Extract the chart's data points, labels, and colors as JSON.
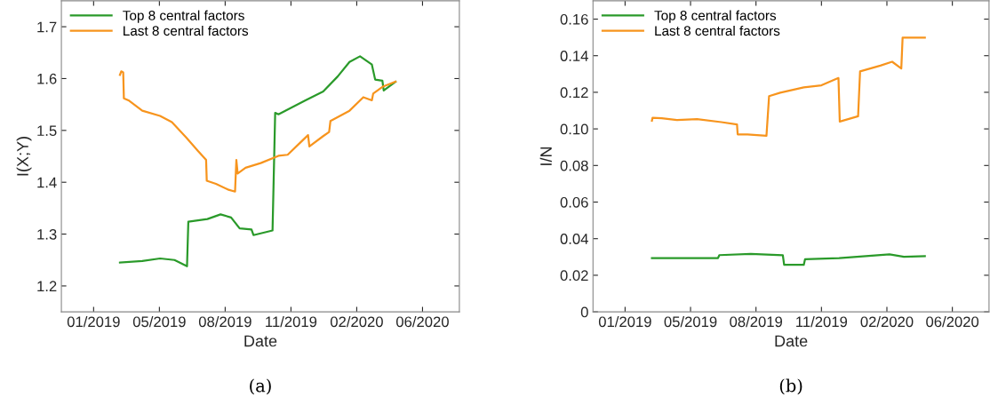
{
  "chart_data": [
    {
      "type": "line",
      "xlabel": "Date",
      "ylabel": "I(X;Y)",
      "annotations": [
        "(a)"
      ],
      "legend": "top left",
      "grid": false,
      "xlim": [
        "2018-12-04",
        "2020-07-31"
      ],
      "xticks": [
        {
          "value": "2019-01-22",
          "label": "01/2019"
        },
        {
          "value": "2019-05-02",
          "label": "05/2019"
        },
        {
          "value": "2019-08-10",
          "label": "08/2019"
        },
        {
          "value": "2019-11-18",
          "label": "11/2019"
        },
        {
          "value": "2020-02-26",
          "label": "02/2020"
        },
        {
          "value": "2020-06-05",
          "label": "06/2020"
        }
      ],
      "ylim": [
        1.15,
        1.75
      ],
      "yticks": [
        1.2,
        1.3,
        1.4,
        1.5,
        1.6,
        1.7
      ],
      "series": [
        {
          "name": "Top 8 central factors",
          "color": "#2a9a2a",
          "x": [
            "2019-03-03",
            "2019-04-06",
            "2019-05-03",
            "2019-05-25",
            "2019-06-13",
            "2019-06-15",
            "2019-07-14",
            "2019-08-03",
            "2019-08-19",
            "2019-09-01",
            "2019-09-19",
            "2019-09-22",
            "2019-10-21",
            "2019-10-25",
            "2019-10-30",
            "2019-12-10",
            "2020-01-06",
            "2020-01-28",
            "2020-02-15",
            "2020-03-02",
            "2020-03-20",
            "2020-03-25",
            "2020-04-05",
            "2020-04-07",
            "2020-04-25"
          ],
          "values": [
            1.245,
            1.248,
            1.253,
            1.25,
            1.238,
            1.324,
            1.329,
            1.338,
            1.332,
            1.311,
            1.309,
            1.298,
            1.307,
            1.534,
            1.531,
            1.558,
            1.575,
            1.604,
            1.632,
            1.643,
            1.627,
            1.598,
            1.596,
            1.577,
            1.594
          ]
        },
        {
          "name": "Last 8 central factors",
          "color": "#f7941d",
          "x": [
            "2019-03-03",
            "2019-03-05",
            "2019-03-08",
            "2019-03-09",
            "2019-03-16",
            "2019-04-06",
            "2019-05-03",
            "2019-05-21",
            "2019-06-12",
            "2019-06-30",
            "2019-07-12",
            "2019-07-13",
            "2019-07-27",
            "2019-08-14",
            "2019-08-25",
            "2019-08-27",
            "2019-08-29",
            "2019-09-10",
            "2019-10-03",
            "2019-10-30",
            "2019-11-13",
            "2019-12-01",
            "2019-12-14",
            "2019-12-16",
            "2020-01-06",
            "2020-01-15",
            "2020-01-17",
            "2020-02-15",
            "2020-03-07",
            "2020-03-20",
            "2020-03-22",
            "2020-04-05",
            "2020-04-25"
          ],
          "values": [
            1.607,
            1.614,
            1.612,
            1.562,
            1.558,
            1.538,
            1.528,
            1.516,
            1.486,
            1.46,
            1.443,
            1.403,
            1.397,
            1.386,
            1.382,
            1.443,
            1.417,
            1.428,
            1.437,
            1.451,
            1.453,
            1.475,
            1.491,
            1.469,
            1.489,
            1.497,
            1.518,
            1.538,
            1.564,
            1.558,
            1.571,
            1.584,
            1.594
          ]
        }
      ]
    },
    {
      "type": "line",
      "xlabel": "Date",
      "ylabel": "I/N",
      "annotations": [
        "(b)"
      ],
      "legend": "top left",
      "grid": false,
      "xlim": [
        "2018-12-04",
        "2020-07-31"
      ],
      "xticks": [
        {
          "value": "2019-01-22",
          "label": "01/2019"
        },
        {
          "value": "2019-05-02",
          "label": "05/2019"
        },
        {
          "value": "2019-08-10",
          "label": "08/2019"
        },
        {
          "value": "2019-11-18",
          "label": "11/2019"
        },
        {
          "value": "2020-02-26",
          "label": "02/2020"
        },
        {
          "value": "2020-06-05",
          "label": "06/2020"
        }
      ],
      "ylim": [
        0,
        0.17
      ],
      "yticks": [
        0,
        {
          "value": 0.02,
          "label": "0.02"
        },
        {
          "value": 0.04,
          "label": "0.04"
        },
        {
          "value": 0.06,
          "label": "0.06"
        },
        {
          "value": 0.08,
          "label": "0.08"
        },
        {
          "value": 0.1,
          "label": "0.10"
        },
        {
          "value": 0.12,
          "label": "0.12"
        },
        {
          "value": 0.14,
          "label": "0.14"
        },
        {
          "value": 0.16,
          "label": "0.16"
        }
      ],
      "series": [
        {
          "name": "Top 8 central factors",
          "color": "#2a9a2a",
          "x": [
            "2019-03-04",
            "2019-06-13",
            "2019-06-15",
            "2019-08-02",
            "2019-09-20",
            "2019-09-22",
            "2019-10-22",
            "2019-10-24",
            "2019-12-15",
            "2020-03-01",
            "2020-03-23",
            "2020-04-24"
          ],
          "values": [
            0.0294,
            0.0294,
            0.031,
            0.0317,
            0.0309,
            0.0257,
            0.0257,
            0.0288,
            0.0294,
            0.0314,
            0.0301,
            0.0304
          ]
        },
        {
          "name": "Last 8 central factors",
          "color": "#f7941d",
          "x": [
            "2019-03-04",
            "2019-03-05",
            "2019-03-19",
            "2019-04-11",
            "2019-05-12",
            "2019-06-18",
            "2019-07-12",
            "2019-07-13",
            "2019-07-28",
            "2019-08-26",
            "2019-08-30",
            "2019-09-16",
            "2019-10-22",
            "2019-11-18",
            "2019-12-14",
            "2019-12-16",
            "2020-01-13",
            "2020-01-16",
            "2020-02-16",
            "2020-03-05",
            "2020-03-19",
            "2020-03-21",
            "2020-04-24"
          ],
          "values": [
            0.1045,
            0.1061,
            0.1058,
            0.1048,
            0.1053,
            0.1037,
            0.1024,
            0.097,
            0.097,
            0.0962,
            0.1179,
            0.1198,
            0.1227,
            0.1238,
            0.1278,
            0.104,
            0.1069,
            0.1314,
            0.1346,
            0.1367,
            0.133,
            0.1499,
            0.1499
          ]
        }
      ]
    }
  ]
}
